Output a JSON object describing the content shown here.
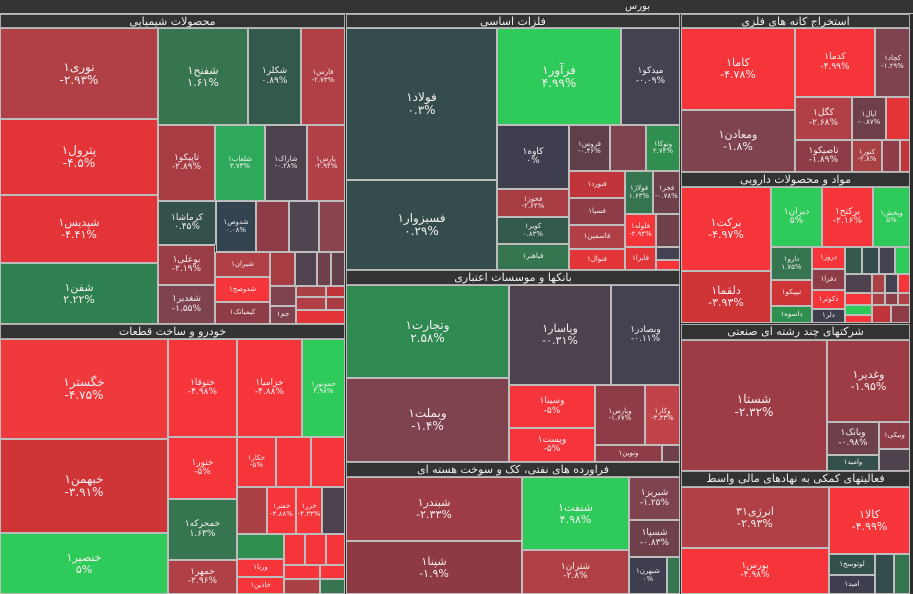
{
  "market_title": "بورس",
  "sectors": [
    {
      "title": "محصولات شیمیایی",
      "tiles": [
        {
          "name": "نوری۱",
          "change": "-۲.۹۳%",
          "color": "#b04045"
        },
        {
          "name": "پترول۱",
          "change": "-۴.۵%",
          "color": "#e33438"
        },
        {
          "name": "شپدیس۱",
          "change": "-۴.۴۱%",
          "color": "#e33438"
        },
        {
          "name": "شفن۱",
          "change": "۲.۲۲%",
          "color": "#2e8050"
        },
        {
          "name": "شفنح۱",
          "change": "۱.۶۱%",
          "color": "#367550"
        },
        {
          "name": "شکلر۱",
          "change": "۰.۸۹%",
          "color": "#33584c"
        },
        {
          "name": "فارس۱",
          "change": "-۲.۷۳%",
          "color": "#b04045"
        },
        {
          "name": "تاپیکو۱",
          "change": "-۲.۸۹%",
          "color": "#a83c43"
        },
        {
          "name": "شلعاب۱",
          "change": "۳.۷۳%",
          "color": "#2ea85a"
        },
        {
          "name": "شاراک۱",
          "change": "-۰.۲۸%",
          "color": "#4b424e"
        },
        {
          "name": "پارس۱",
          "change": "-۲.۹۴%",
          "color": "#b04045"
        },
        {
          "name": "کرماشا۱",
          "change": "۰.۴۵%",
          "color": "#33504c"
        },
        {
          "name": "شدوص۱",
          "change": "۰.۰۸%",
          "color": "#334450"
        },
        {
          "color": "#8e3c47"
        },
        {
          "color": "#4f444f"
        },
        {
          "color": "#8a4450"
        },
        {
          "name": "بوعلی۱",
          "change": "-۲.۱۹%",
          "color": "#9a3c45"
        },
        {
          "name": "شغدیر۱",
          "change": "-۱.۵۵%",
          "color": "#7e434e"
        },
        {
          "name": "شیران۱",
          "color": "#b04045"
        },
        {
          "name": "شدوصح۱",
          "color": "#f5353a"
        },
        {
          "name": "کیمیاتک۱",
          "color": "#8e3c47"
        },
        {
          "name": "جم۱",
          "color": "#7e434e"
        },
        {
          "color": "#a83c43"
        },
        {
          "color": "#4f444f"
        },
        {
          "color": "#6e404a"
        },
        {
          "color": "#5e3f4a"
        },
        {
          "color": "#7e434e"
        },
        {
          "color": "#a84045"
        },
        {
          "color": "#b04045"
        },
        {
          "color": "#c0343a"
        },
        {
          "color": "#a83c43"
        },
        {
          "color": "#e33438"
        }
      ]
    },
    {
      "title": "خودرو و ساخت قطعات",
      "tiles": [
        {
          "name": "خگستر۱",
          "change": "-۴.۷۵%",
          "color": "#f0393c"
        },
        {
          "name": "خبهمن۱",
          "change": "-۳.۹۱%",
          "color": "#cf3437"
        },
        {
          "name": "خنصیر۱",
          "change": "۵%",
          "color": "#2fcb5a"
        },
        {
          "name": "ختوقا۱",
          "change": "-۴.۹۸%",
          "color": "#f5353a"
        },
        {
          "name": "خزامیا۱",
          "change": "-۴.۸۸%",
          "color": "#f5353a"
        },
        {
          "name": "خموتور۱",
          "change": "۴.۹۸%",
          "color": "#2fcb5a"
        },
        {
          "name": "ختور۱",
          "change": "-۵%",
          "color": "#f5353a"
        },
        {
          "name": "خکار۱",
          "change": "-۵%",
          "color": "#f5353a"
        },
        {
          "color": "#f5353a"
        },
        {
          "color": "#f5353a"
        },
        {
          "color": "#a84045"
        },
        {
          "name": "خفنر۱",
          "change": "-۴.۸۸%",
          "color": "#f5353a"
        },
        {
          "name": "خزر۱",
          "change": "-۴.۳۳%",
          "color": "#f5353a"
        },
        {
          "color": "#4b424e"
        },
        {
          "name": "خمحرکه۱",
          "change": "۱.۶۳%",
          "color": "#357550"
        },
        {
          "name": "خمهر۱",
          "change": "-۲.۹۶%",
          "color": "#b04045"
        },
        {
          "color": "#2e8f4f"
        },
        {
          "name": "ورنا۱",
          "color": "#f5353a"
        },
        {
          "name": "خاذین۱",
          "color": "#f5353a"
        },
        {
          "color": "#f5353a"
        },
        {
          "color": "#f5353a"
        },
        {
          "color": "#f5353a"
        },
        {
          "color": "#f5353a"
        },
        {
          "color": "#f5353a"
        },
        {
          "color": "#a84045"
        },
        {
          "color": "#357550"
        },
        {
          "color": "#5e3f4a"
        }
      ]
    },
    {
      "title": "فلزات اساسی",
      "tiles": [
        {
          "name": "فولاد۱",
          "change": "۰.۳%",
          "color": "#344c4c"
        },
        {
          "name": "فسبزوار۱",
          "change": "۰.۲۹%",
          "color": "#344c4c"
        },
        {
          "name": "فرآور۱",
          "change": "۴.۹۹%",
          "color": "#2fcb5a"
        },
        {
          "name": "میدکو۱",
          "change": "-۰.۰۹%",
          "color": "#444250"
        },
        {
          "name": "کاوه۱",
          "change": "۰%",
          "color": "#3e3e4e"
        },
        {
          "name": "فروس۱",
          "change": "-۰.۴۶%",
          "color": "#5e3f4a"
        },
        {
          "color": "#7e434e"
        },
        {
          "name": "وتوکا۱",
          "change": "۲.۷۴%",
          "color": "#2e8f4f"
        },
        {
          "name": "فخوز۱",
          "change": "-۲.۶۴%",
          "color": "#a83c43"
        },
        {
          "name": "کویر۱",
          "change": "۰.۸۳%",
          "color": "#33584c"
        },
        {
          "name": "فباهنر۱",
          "color": "#357550"
        },
        {
          "name": "فنورد۱",
          "color": "#c0343a"
        },
        {
          "name": "فسپا۱",
          "color": "#8e3c47"
        },
        {
          "name": "فاسمین۱",
          "color": "#b04045"
        },
        {
          "name": "فنوال۱",
          "color": "#e33438"
        },
        {
          "name": "فولاژ۱",
          "change": "۱.۶۳%",
          "color": "#357550"
        },
        {
          "name": "فجر۱",
          "change": "-۰.۷۸%",
          "color": "#6e404a"
        },
        {
          "name": "فلوله۱",
          "change": "-۲.۹۴%",
          "color": "#f5353a"
        },
        {
          "color": "#6e404a"
        },
        {
          "name": "فایرا۱",
          "color": "#e33438"
        },
        {
          "color": "#444250"
        },
        {
          "color": "#f5353a"
        }
      ]
    },
    {
      "title": "بانکها و موسسات اعتباری",
      "tiles": [
        {
          "name": "وتجارت۱",
          "change": "۲.۵۸%",
          "color": "#2e8a50"
        },
        {
          "name": "وبملت۱",
          "change": "-۱.۴%",
          "color": "#7e434e"
        },
        {
          "name": "وپاسار۱",
          "change": "-۰.۳۱%",
          "color": "#4e424f"
        },
        {
          "name": "وبصادر۱",
          "change": "-۰.۱۱%",
          "color": "#444250"
        },
        {
          "name": "وسینا۱",
          "change": "-۵%",
          "color": "#f5353a"
        },
        {
          "name": "وپست۱",
          "change": "-۵%",
          "color": "#f5353a"
        },
        {
          "name": "وپارس۱",
          "change": "-۱.۶۷%",
          "color": "#8e3c47"
        },
        {
          "name": "وکار۱",
          "change": "-۳.۳۳%",
          "color": "#c0434a"
        },
        {
          "name": "ونوین۱",
          "color": "#8e3c47"
        },
        {
          "color": "#6e404a"
        }
      ]
    },
    {
      "title": "فراورده های نفتی، کک و سوخت هسته ای",
      "tiles": [
        {
          "name": "شبندر۱",
          "change": "-۲.۳۳%",
          "color": "#9d3c45"
        },
        {
          "name": "شپنا۱",
          "change": "-۱.۹%",
          "color": "#8e3a43"
        },
        {
          "name": "شنفت۱",
          "change": "۴.۹۸%",
          "color": "#2fcb5a"
        },
        {
          "name": "شتران۱",
          "change": "-۲.۸%",
          "color": "#b04045"
        },
        {
          "name": "شبریز۱",
          "change": "-۱.۲۵%",
          "color": "#7e434e"
        },
        {
          "name": "شسپا۱",
          "change": "-۰.۸۳%",
          "color": "#6e404a"
        },
        {
          "name": "شبهرن۱",
          "change": "۰%",
          "color": "#3e3e4e"
        },
        {
          "color": "#357550"
        }
      ]
    },
    {
      "title": "استخراج کانه های فلزی",
      "tiles": [
        {
          "name": "کاما۱",
          "change": "-۴.۷۸%",
          "color": "#f5353a"
        },
        {
          "name": "ومعادن۱",
          "change": "-۱.۸%",
          "color": "#7e434e"
        },
        {
          "name": "کدما۱",
          "change": "-۴.۹۹%",
          "color": "#f5353a"
        },
        {
          "name": "کچاد۱",
          "change": "-۱.۲۹%",
          "color": "#7e434e"
        },
        {
          "name": "کگل۱",
          "change": "-۲.۶۸%",
          "color": "#b04045"
        },
        {
          "name": "اپال۱",
          "change": "-۰.۸۷%",
          "color": "#6e404a"
        },
        {
          "color": "#e33438"
        },
        {
          "name": "تاصیکو۱",
          "change": "-۱.۸۹%",
          "color": "#8e3c47"
        },
        {
          "name": "کنور۱",
          "change": "-۲.۸%",
          "color": "#a84045"
        },
        {
          "color": "#8e3c47"
        },
        {
          "color": "#c0343a"
        }
      ]
    },
    {
      "title": "مواد و محصولات دارویی",
      "tiles": [
        {
          "name": "برکت۱",
          "change": "-۴.۹۷%",
          "color": "#f5353a"
        },
        {
          "name": "دلقما۱",
          "change": "-۳.۹۳%",
          "color": "#cf3437"
        },
        {
          "name": "دیران۱",
          "change": "۵%",
          "color": "#2fcb5a"
        },
        {
          "name": "برکتح۱",
          "change": "-۲.۱۶%",
          "color": "#f5353a"
        },
        {
          "name": "وپخش۱",
          "change": "۵%",
          "color": "#2fcb5a"
        },
        {
          "name": "دارو۱",
          "change": "۱.۷۵%",
          "color": "#357550"
        },
        {
          "name": "دروز۱",
          "color": "#f5353a"
        },
        {
          "name": "دفرا۱",
          "color": "#8e3c47"
        },
        {
          "name": "تیپیکو۱",
          "color": "#cf3437"
        },
        {
          "name": "دکوثر۱",
          "color": "#f5353a"
        },
        {
          "name": "داسوه۱",
          "color": "#2e8f4f"
        },
        {
          "name": "دلر۱",
          "color": "#3e3e4e"
        },
        {
          "color": "#33584c"
        },
        {
          "color": "#344c4c"
        },
        {
          "color": "#444250"
        },
        {
          "color": "#2fcb5a"
        },
        {
          "color": "#4e424f"
        },
        {
          "color": "#a84045"
        },
        {
          "color": "#444250"
        },
        {
          "color": "#f5353a"
        },
        {
          "color": "#f5353a"
        },
        {
          "color": "#a84045"
        },
        {
          "color": "#8e3c47"
        },
        {
          "color": "#b04045"
        },
        {
          "color": "#2fcb5a"
        },
        {
          "color": "#f5353a"
        },
        {
          "color": "#c0343a"
        },
        {
          "color": "#8e3c47"
        }
      ]
    },
    {
      "title": "شرکتهای چند رشته ای صنعتی",
      "tiles": [
        {
          "name": "شستا۱",
          "change": "-۲.۳۲%",
          "color": "#9d3c45"
        },
        {
          "name": "وغدیر۱",
          "change": "-۱.۹۵%",
          "color": "#9d3c45"
        },
        {
          "name": "وبانک۱",
          "change": "-۰.۹۸%",
          "color": "#6e404a"
        },
        {
          "name": "ونیکی۱",
          "color": "#8e3c47"
        },
        {
          "color": "#4e424f"
        },
        {
          "name": "وامید۱",
          "color": "#33504c"
        }
      ]
    },
    {
      "title": "فعالیتهای کمکی به نهادهای مالی واسط",
      "tiles": [
        {
          "name": "انرژی۳۱",
          "change": "-۲.۹۳%",
          "color": "#b04045"
        },
        {
          "name": "بورس۱",
          "change": "-۴.۹۸%",
          "color": "#f5353a"
        },
        {
          "name": "کالا۱",
          "change": "-۴.۹۹%",
          "color": "#f5353a"
        },
        {
          "name": "لوتوسخ۱",
          "color": "#33504c"
        },
        {
          "name": "امید۱",
          "color": "#3e3e4e"
        },
        {
          "color": "#344c4c"
        },
        {
          "color": "#357550"
        }
      ]
    }
  ]
}
